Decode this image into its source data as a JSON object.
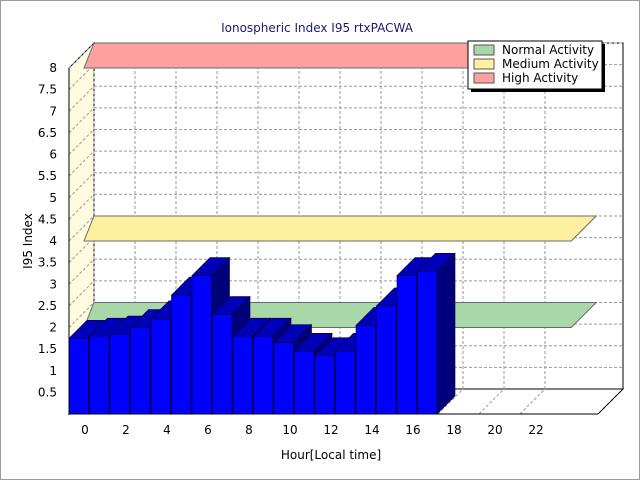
{
  "chart_data": {
    "type": "bar",
    "title": "Ionospheric Index I95 rtxPACWA",
    "xlabel": "Hour[Local time]",
    "ylabel": "I95 Index",
    "xlim": [
      0,
      24
    ],
    "ylim": [
      0,
      8
    ],
    "x_ticks": [
      "0",
      "2",
      "4",
      "6",
      "8",
      "10",
      "12",
      "14",
      "16",
      "18",
      "20",
      "22"
    ],
    "y_ticks": [
      "0.5",
      "1",
      "1.5",
      "2",
      "2.5",
      "3",
      "3.5",
      "4",
      "4.5",
      "5",
      "5.5",
      "6",
      "6.5",
      "7",
      "7.5",
      "8"
    ],
    "grid": true,
    "legend_position": "top-right",
    "x": [
      0,
      1,
      2,
      3,
      4,
      5,
      6,
      7,
      8,
      9,
      10,
      11,
      12,
      13,
      14,
      15,
      16,
      17
    ],
    "values": [
      1.75,
      1.8,
      1.85,
      2.0,
      2.2,
      2.75,
      3.2,
      2.3,
      1.8,
      1.8,
      1.65,
      1.45,
      1.35,
      1.45,
      2.05,
      2.5,
      3.2,
      3.3
    ],
    "bar_color": "#0000ff",
    "activity_bands": [
      {
        "name": "Normal Activity",
        "value": 2.0,
        "color": "#a8d8a8"
      },
      {
        "name": "Medium Activity",
        "value": 4.0,
        "color": "#fff0a0"
      },
      {
        "name": "High Activity",
        "value": 8.0,
        "color": "#ffa0a0"
      }
    ]
  }
}
